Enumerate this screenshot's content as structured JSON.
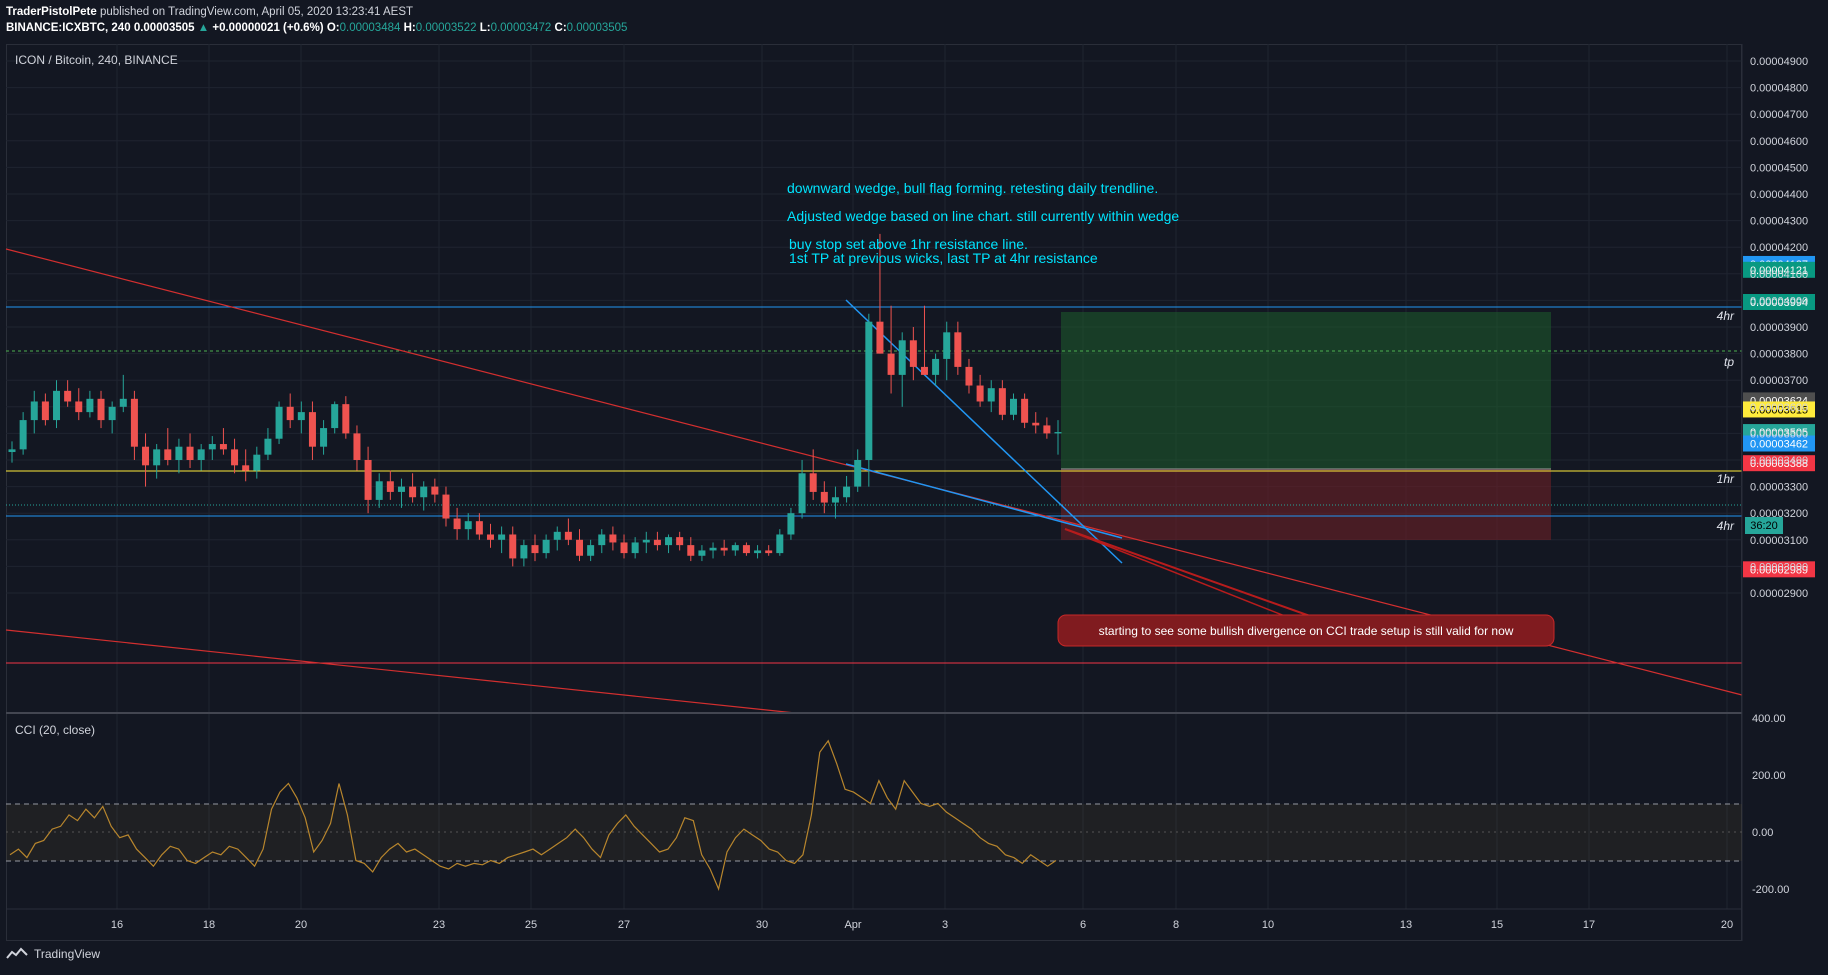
{
  "header": {
    "author": "TraderPistolPete",
    "published_text": "published on TradingView.com, April 05, 2020 13:23:41 AEST",
    "symbol": "BINANCE:ICXBTC, 240",
    "last": "0.00003505",
    "change": "+0.00000021 (+0.6%)",
    "o_label": "O:",
    "o_value": "0.00003484",
    "h_label": "H:",
    "h_value": "0.00003522",
    "l_label": "L:",
    "l_value": "0.00003472",
    "c_label": "C:",
    "c_value": "0.00003505"
  },
  "chart_title": "ICON / Bitcoin, 240, BINANCE",
  "indicator_title": "CCI (20, close)",
  "notes": {
    "line1": "downward wedge, bull flag forming. retesting daily trendline.",
    "line2": "Adjusted wedge based on line chart. still currently within wedge",
    "line3": "buy stop set above 1hr resistance line.",
    "line4": "1st TP at previous wicks, last TP at 4hr resistance",
    "callout": "starting to see some bullish divergence on CCI trade setup is still valid for now"
  },
  "line_labels": {
    "hr4_top": "4hr",
    "tp": "tp",
    "hr1": "1hr",
    "hr4_bottom": "4hr"
  },
  "countdown": "36:20",
  "footer": {
    "brand": "TradingView"
  },
  "colors": {
    "bg": "#131722",
    "up": "#26a69a",
    "down": "#ef5350",
    "accent_text": "#00e5ff",
    "cci": "#b8862d"
  },
  "chart_data": [
    {
      "type": "candlestick",
      "title": "ICON / Bitcoin, 240, BINANCE",
      "x_ticks": [
        "16",
        "18",
        "20",
        "23",
        "25",
        "27",
        "30",
        "Apr",
        "3",
        "6",
        "8",
        "10",
        "13",
        "15",
        "17",
        "20"
      ],
      "y_ticks": [
        "0.00004900",
        "0.00004800",
        "0.00004700",
        "0.00004600",
        "0.00004500",
        "0.00004400",
        "0.00004300",
        "0.00004200",
        "0.00004100",
        "0.00004000",
        "0.00003900",
        "0.00003800",
        "0.00003700",
        "0.00003600",
        "0.00003500",
        "0.00003400",
        "0.00003300",
        "0.00003200",
        "0.00003100",
        "0.00003000",
        "0.00002900"
      ],
      "ylim": [
        2.85e-05,
        4.95e-05
      ],
      "price_tags": [
        {
          "value": "0.00004137",
          "price": 4.137e-05,
          "color": "#2196f3"
        },
        {
          "value": "0.00004121",
          "price": 4.115e-05,
          "color": "#089981"
        },
        {
          "value": "0.00003994",
          "price": 3.994e-05,
          "color": "#089981"
        },
        {
          "value": "0.00003624",
          "price": 3.624e-05,
          "color": "#4f4f4f"
        },
        {
          "value": "0.00003615",
          "price": 3.59e-05,
          "color": "#ffeb3b"
        },
        {
          "value": "0.00003505",
          "price": 3.505e-05,
          "color": "#26a69a"
        },
        {
          "value": "0.00003462",
          "price": 3.462e-05,
          "color": "#2196f3"
        },
        {
          "value": "0.00003388",
          "price": 3.388e-05,
          "color": "#f23645"
        },
        {
          "value": "0.00002989",
          "price": 2.989e-05,
          "color": "#f23645"
        }
      ],
      "horizontal_levels": {
        "resistance_4hr": 4.137e-05,
        "take_profit": 3.994e-05,
        "resistance_1hr": 3.615e-05,
        "last_price": 3.505e-05,
        "support_4hr": 3.462e-05,
        "low_level": 2.989e-05
      },
      "position": {
        "target": 4.121e-05,
        "entry": 3.624e-05,
        "stop": 3.388e-05
      },
      "ohlc_approx": [
        [
          3.43,
          3.47,
          3.39,
          3.44
        ],
        [
          3.44,
          3.58,
          3.42,
          3.55
        ],
        [
          3.55,
          3.66,
          3.5,
          3.62
        ],
        [
          3.62,
          3.65,
          3.53,
          3.55
        ],
        [
          3.55,
          3.7,
          3.52,
          3.66
        ],
        [
          3.66,
          3.7,
          3.6,
          3.62
        ],
        [
          3.62,
          3.67,
          3.55,
          3.58
        ],
        [
          3.58,
          3.66,
          3.56,
          3.63
        ],
        [
          3.63,
          3.66,
          3.52,
          3.55
        ],
        [
          3.55,
          3.62,
          3.5,
          3.6
        ],
        [
          3.6,
          3.72,
          3.58,
          3.63
        ],
        [
          3.63,
          3.66,
          3.4,
          3.45
        ],
        [
          3.45,
          3.5,
          3.3,
          3.38
        ],
        [
          3.38,
          3.46,
          3.33,
          3.44
        ],
        [
          3.44,
          3.52,
          3.38,
          3.4
        ],
        [
          3.4,
          3.48,
          3.35,
          3.45
        ],
        [
          3.45,
          3.5,
          3.37,
          3.4
        ],
        [
          3.4,
          3.46,
          3.36,
          3.44
        ],
        [
          3.44,
          3.49,
          3.4,
          3.46
        ],
        [
          3.46,
          3.52,
          3.42,
          3.44
        ],
        [
          3.44,
          3.48,
          3.35,
          3.38
        ],
        [
          3.38,
          3.44,
          3.32,
          3.36
        ],
        [
          3.36,
          3.45,
          3.33,
          3.42
        ],
        [
          3.42,
          3.52,
          3.4,
          3.48
        ],
        [
          3.48,
          3.62,
          3.46,
          3.6
        ],
        [
          3.6,
          3.65,
          3.52,
          3.55
        ],
        [
          3.55,
          3.62,
          3.5,
          3.58
        ],
        [
          3.58,
          3.62,
          3.4,
          3.45
        ],
        [
          3.45,
          3.55,
          3.42,
          3.52
        ],
        [
          3.52,
          3.62,
          3.5,
          3.61
        ],
        [
          3.61,
          3.64,
          3.48,
          3.5
        ],
        [
          3.5,
          3.53,
          3.36,
          3.4
        ],
        [
          3.4,
          3.45,
          3.2,
          3.25
        ],
        [
          3.25,
          3.35,
          3.22,
          3.32
        ],
        [
          3.32,
          3.36,
          3.25,
          3.28
        ],
        [
          3.28,
          3.33,
          3.22,
          3.3
        ],
        [
          3.3,
          3.35,
          3.24,
          3.26
        ],
        [
          3.26,
          3.32,
          3.21,
          3.3
        ],
        [
          3.3,
          3.33,
          3.24,
          3.27
        ],
        [
          3.27,
          3.3,
          3.15,
          3.18
        ],
        [
          3.18,
          3.22,
          3.1,
          3.14
        ],
        [
          3.14,
          3.2,
          3.1,
          3.17
        ],
        [
          3.17,
          3.2,
          3.1,
          3.12
        ],
        [
          3.12,
          3.16,
          3.07,
          3.1
        ],
        [
          3.1,
          3.15,
          3.05,
          3.12
        ],
        [
          3.12,
          3.15,
          3.0,
          3.03
        ],
        [
          3.03,
          3.1,
          3.0,
          3.08
        ],
        [
          3.08,
          3.12,
          3.02,
          3.05
        ],
        [
          3.05,
          3.12,
          3.03,
          3.1
        ],
        [
          3.1,
          3.15,
          3.06,
          3.13
        ],
        [
          3.13,
          3.18,
          3.08,
          3.1
        ],
        [
          3.1,
          3.14,
          3.02,
          3.04
        ],
        [
          3.04,
          3.1,
          3.02,
          3.08
        ],
        [
          3.08,
          3.14,
          3.05,
          3.12
        ],
        [
          3.12,
          3.15,
          3.06,
          3.09
        ],
        [
          3.09,
          3.12,
          3.03,
          3.05
        ],
        [
          3.05,
          3.11,
          3.03,
          3.09
        ],
        [
          3.09,
          3.13,
          3.05,
          3.1
        ],
        [
          3.1,
          3.13,
          3.06,
          3.08
        ],
        [
          3.08,
          3.12,
          3.05,
          3.11
        ],
        [
          3.11,
          3.13,
          3.06,
          3.08
        ],
        [
          3.08,
          3.11,
          3.02,
          3.04
        ],
        [
          3.04,
          3.08,
          3.02,
          3.06
        ],
        [
          3.06,
          3.09,
          3.03,
          3.07
        ],
        [
          3.07,
          3.1,
          3.04,
          3.06
        ],
        [
          3.06,
          3.09,
          3.04,
          3.08
        ],
        [
          3.08,
          3.09,
          3.04,
          3.05
        ],
        [
          3.05,
          3.08,
          3.03,
          3.06
        ],
        [
          3.06,
          3.08,
          3.04,
          3.05
        ],
        [
          3.05,
          3.14,
          3.04,
          3.12
        ],
        [
          3.12,
          3.22,
          3.1,
          3.2
        ],
        [
          3.2,
          3.4,
          3.18,
          3.35
        ],
        [
          3.35,
          3.44,
          3.25,
          3.28
        ],
        [
          3.28,
          3.32,
          3.2,
          3.24
        ],
        [
          3.24,
          3.3,
          3.18,
          3.26
        ],
        [
          3.26,
          3.34,
          3.24,
          3.3
        ],
        [
          3.3,
          3.44,
          3.28,
          3.4
        ],
        [
          3.4,
          3.95,
          3.3,
          3.92
        ],
        [
          3.92,
          4.25,
          3.8,
          3.8
        ],
        [
          3.8,
          3.98,
          3.65,
          3.72
        ],
        [
          3.72,
          3.88,
          3.6,
          3.85
        ],
        [
          3.85,
          3.9,
          3.7,
          3.75
        ],
        [
          3.75,
          3.98,
          3.72,
          3.72
        ],
        [
          3.72,
          3.8,
          3.68,
          3.78
        ],
        [
          3.78,
          3.92,
          3.7,
          3.88
        ],
        [
          3.88,
          3.92,
          3.72,
          3.75
        ],
        [
          3.75,
          3.78,
          3.65,
          3.68
        ],
        [
          3.68,
          3.72,
          3.6,
          3.62
        ],
        [
          3.62,
          3.7,
          3.58,
          3.67
        ],
        [
          3.67,
          3.7,
          3.55,
          3.57
        ],
        [
          3.57,
          3.65,
          3.55,
          3.63
        ],
        [
          3.63,
          3.65,
          3.52,
          3.54
        ],
        [
          3.54,
          3.58,
          3.5,
          3.53
        ],
        [
          3.53,
          3.56,
          3.48,
          3.5
        ],
        [
          3.5,
          3.55,
          3.42,
          3.505
        ]
      ]
    },
    {
      "type": "line",
      "title": "CCI (20, close)",
      "y_ticks": [
        "400.00",
        "200.00",
        "0.00",
        "-200.00"
      ],
      "ylim": [
        -265,
        400
      ],
      "bands": [
        100,
        0,
        -100
      ],
      "values": [
        -80,
        -60,
        -90,
        -40,
        -30,
        10,
        20,
        60,
        40,
        80,
        50,
        90,
        20,
        -20,
        -10,
        -60,
        -90,
        -120,
        -80,
        -50,
        -60,
        -100,
        -110,
        -90,
        -70,
        -80,
        -50,
        -60,
        -90,
        -120,
        -60,
        80,
        140,
        170,
        120,
        50,
        -70,
        -30,
        30,
        170,
        60,
        -100,
        -110,
        -140,
        -90,
        -60,
        -40,
        -70,
        -60,
        -80,
        -100,
        -120,
        -130,
        -110,
        -120,
        -110,
        -115,
        -100,
        -110,
        -90,
        -80,
        -70,
        -60,
        -80,
        -60,
        -40,
        -20,
        10,
        -20,
        -60,
        -90,
        -10,
        30,
        60,
        20,
        -10,
        -40,
        -70,
        -60,
        -20,
        50,
        40,
        -80,
        -130,
        -200,
        -70,
        -20,
        10,
        -10,
        -30,
        -60,
        -70,
        -100,
        -110,
        -80,
        60,
        280,
        320,
        240,
        150,
        140,
        120,
        100,
        180,
        120,
        80,
        180,
        140,
        100,
        90,
        100,
        70,
        50,
        30,
        10,
        -20,
        -40,
        -50,
        -80,
        -90,
        -110,
        -80,
        -100,
        -120,
        -100
      ],
      "xlim": [
        "15",
        "20"
      ]
    }
  ]
}
